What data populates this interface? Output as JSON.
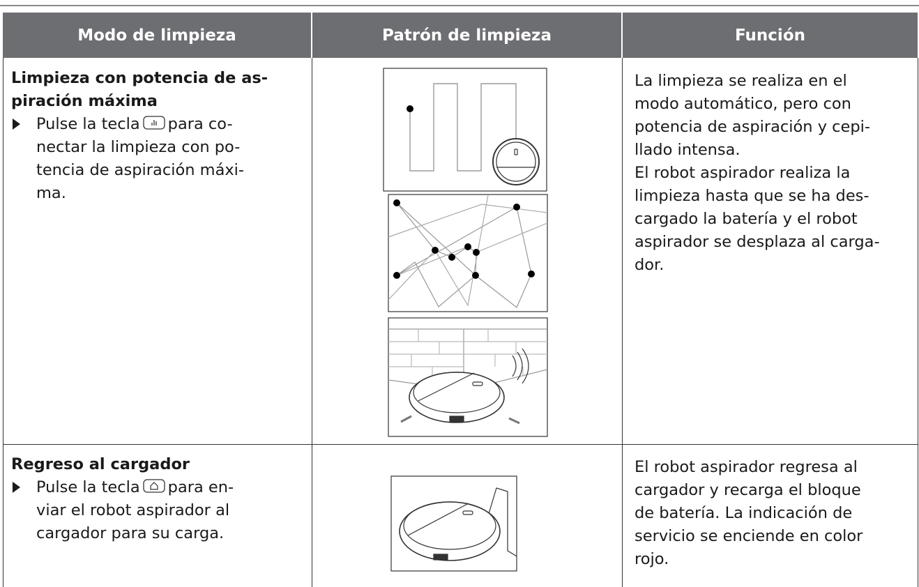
{
  "table": {
    "headers": [
      "Modo de limpieza",
      "Patrón de limpieza",
      "Función"
    ],
    "rows": [
      {
        "mode_title": [
          "Limpieza con potencia de as-",
          "piración máxima"
        ],
        "step_lead": "Pulse la tecla",
        "step_lines": [
          "para co-",
          "nectar la limpieza con po-",
          "tencia de aspiración máxi-",
          "ma."
        ],
        "function": [
          "La limpieza se realiza en el",
          "modo automático, pero con",
          "potencia de aspiración y cepi-",
          "llado intensa.",
          "El robot aspirador realiza la",
          "limpieza hasta que se ha des-",
          "cargado la batería y el robot",
          "aspirador se desplaza al carga-",
          "dor."
        ]
      },
      {
        "mode_title": [
          "Regreso al cargador"
        ],
        "step_lead": "Pulse la tecla",
        "step_lines": [
          "para en-",
          "viar el robot aspirador al",
          "cargador para su carga."
        ],
        "function": [
          "El robot aspirador regresa al",
          "cargador y recarga el bloque",
          "de batería. La indicación de",
          "servicio se enciende en color",
          "rojo."
        ]
      }
    ]
  }
}
